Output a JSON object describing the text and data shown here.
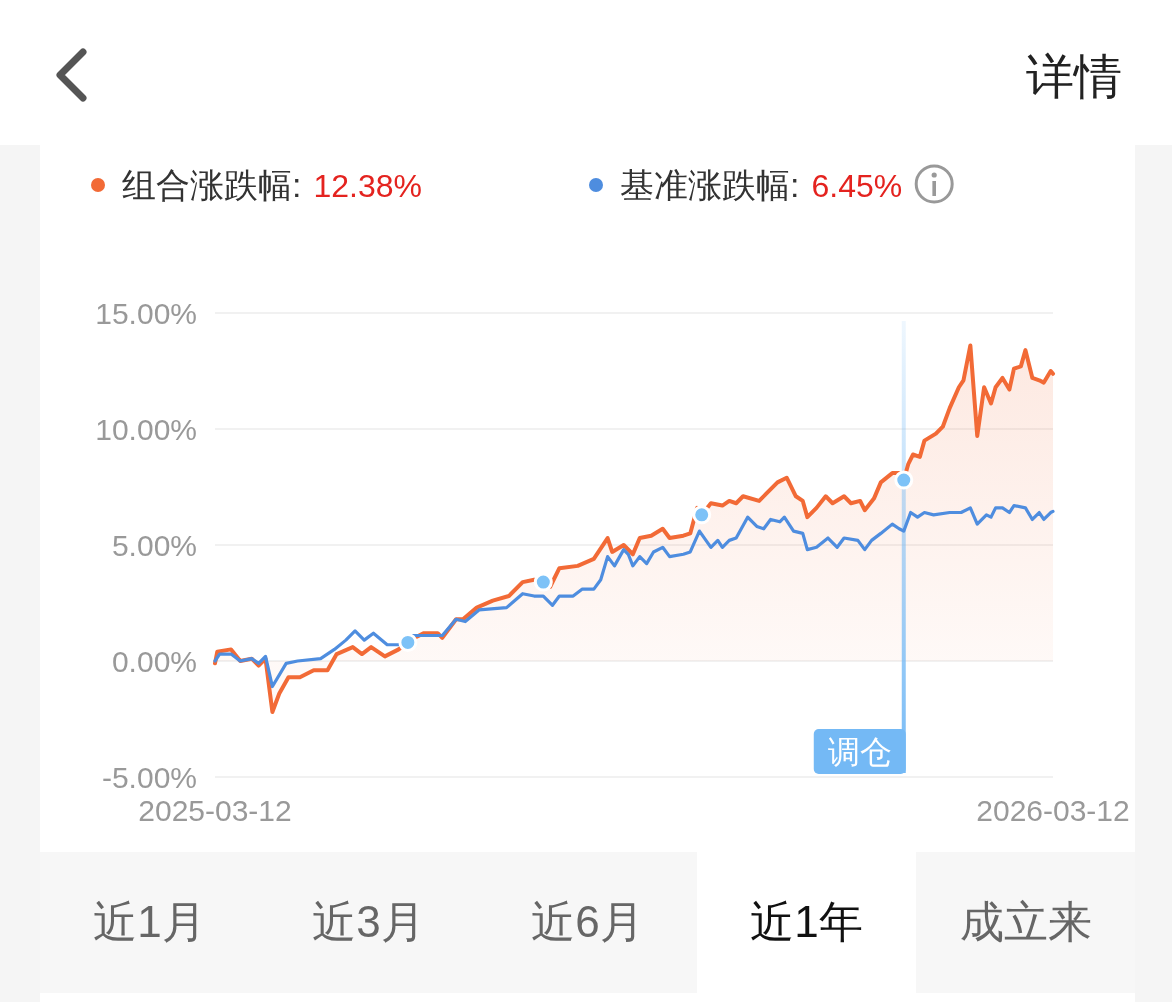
{
  "chart_data": {
    "type": "line",
    "xlim": [
      "2025-03-12",
      "2026-03-12"
    ],
    "xticks": [
      "2025-03-12",
      "2026-03-12"
    ],
    "ylim": [
      -5,
      15
    ],
    "yticks": [
      {
        "value": -5,
        "label": "-5.00%"
      },
      {
        "value": 0,
        "label": "0.00%"
      },
      {
        "value": 5,
        "label": "5.00%"
      },
      {
        "value": 10,
        "label": "10.00%"
      },
      {
        "value": 15,
        "label": "15.00%"
      }
    ],
    "grid": "y",
    "legend": "top",
    "ref_lines": [
      {
        "axis": "x",
        "value": "2026-01-06",
        "label": "调仓",
        "color": "#74b9f5"
      }
    ],
    "annotations": [
      "12.38%",
      "6.45%",
      "详情",
      "近1月",
      "近3月",
      "近6月",
      "近1年",
      "成立来"
    ],
    "series": [
      {
        "name": "组合涨跌幅:",
        "type": "area",
        "color": "#f26a36",
        "x": [
          "2025-03-12",
          "2025-03-13",
          "2025-03-19",
          "2025-03-23",
          "2025-03-28",
          "2025-03-31",
          "2025-04-03",
          "2025-04-06",
          "2025-04-09",
          "2025-04-13",
          "2025-04-18",
          "2025-04-24",
          "2025-04-30",
          "2025-05-04",
          "2025-05-11",
          "2025-05-15",
          "2025-05-19",
          "2025-05-25",
          "2025-05-31",
          "2025-06-04",
          "2025-06-07",
          "2025-06-11",
          "2025-06-17",
          "2025-06-19",
          "2025-06-25",
          "2025-06-28",
          "2025-07-04",
          "2025-07-11",
          "2025-07-18",
          "2025-07-24",
          "2025-07-29",
          "2025-08-02",
          "2025-08-05",
          "2025-08-09",
          "2025-08-17",
          "2025-08-24",
          "2025-08-30",
          "2025-09-01",
          "2025-09-06",
          "2025-09-10",
          "2025-09-13",
          "2025-09-18",
          "2025-09-23",
          "2025-09-26",
          "2025-10-02",
          "2025-10-05",
          "2025-10-08",
          "2025-10-10",
          "2025-10-14",
          "2025-10-19",
          "2025-10-22",
          "2025-10-25",
          "2025-10-28",
          "2025-11-04",
          "2025-11-07",
          "2025-11-12",
          "2025-11-16",
          "2025-11-20",
          "2025-11-23",
          "2025-11-25",
          "2025-11-29",
          "2025-12-03",
          "2025-12-06",
          "2025-12-11",
          "2025-12-14",
          "2025-12-18",
          "2025-12-20",
          "2025-12-24",
          "2025-12-27",
          "2026-01-01",
          "2026-01-04",
          "2026-01-06",
          "2026-01-08",
          "2026-01-10",
          "2026-01-13",
          "2026-01-15",
          "2026-01-20",
          "2026-01-23",
          "2026-01-26",
          "2026-01-30",
          "2026-02-01",
          "2026-02-04",
          "2026-02-07",
          "2026-02-10",
          "2026-02-13",
          "2026-02-15",
          "2026-02-18",
          "2026-02-21",
          "2026-02-23",
          "2026-02-26",
          "2026-02-28",
          "2026-03-03",
          "2026-03-06",
          "2026-03-08",
          "2026-03-11",
          "2026-03-12"
        ],
        "values": [
          -0.1,
          0.4,
          0.5,
          0.0,
          0.1,
          -0.2,
          0.1,
          -2.2,
          -1.4,
          -0.7,
          -0.7,
          -0.4,
          -0.4,
          0.3,
          0.6,
          0.3,
          0.6,
          0.2,
          0.5,
          0.8,
          1.0,
          1.2,
          1.2,
          1.0,
          1.8,
          1.8,
          2.3,
          2.6,
          2.8,
          3.4,
          3.5,
          3.4,
          3.2,
          4.0,
          4.1,
          4.4,
          5.3,
          4.7,
          5.0,
          4.6,
          5.3,
          5.4,
          5.7,
          5.3,
          5.4,
          5.5,
          6.6,
          6.3,
          6.8,
          6.7,
          6.9,
          6.8,
          7.1,
          6.9,
          7.2,
          7.7,
          7.9,
          7.1,
          6.9,
          6.2,
          6.6,
          7.1,
          6.8,
          7.1,
          6.8,
          6.9,
          6.5,
          7.0,
          7.7,
          8.1,
          8.1,
          7.8,
          8.5,
          8.9,
          8.8,
          9.5,
          9.8,
          10.1,
          10.9,
          11.8,
          12.1,
          13.6,
          9.7,
          11.8,
          11.1,
          11.8,
          12.2,
          11.7,
          12.6,
          12.7,
          13.4,
          12.2,
          12.1,
          12.0,
          12.5,
          12.38
        ]
      },
      {
        "name": "基准涨跌幅:",
        "type": "line",
        "color": "#4e8ddf",
        "x": [
          "2025-03-12",
          "2025-03-14",
          "2025-03-19",
          "2025-03-23",
          "2025-03-28",
          "2025-03-31",
          "2025-04-03",
          "2025-04-06",
          "2025-04-12",
          "2025-04-17",
          "2025-04-27",
          "2025-05-03",
          "2025-05-08",
          "2025-05-12",
          "2025-05-16",
          "2025-05-20",
          "2025-05-26",
          "2025-05-31",
          "2025-06-06",
          "2025-06-19",
          "2025-06-25",
          "2025-06-29",
          "2025-07-05",
          "2025-07-17",
          "2025-07-24",
          "2025-07-29",
          "2025-08-02",
          "2025-08-06",
          "2025-08-09",
          "2025-08-15",
          "2025-08-19",
          "2025-08-24",
          "2025-08-27",
          "2025-08-30",
          "2025-09-02",
          "2025-09-06",
          "2025-09-08",
          "2025-09-10",
          "2025-09-13",
          "2025-09-16",
          "2025-09-19",
          "2025-09-23",
          "2025-09-26",
          "2025-10-02",
          "2025-10-05",
          "2025-10-09",
          "2025-10-14",
          "2025-10-17",
          "2025-10-19",
          "2025-10-22",
          "2025-10-25",
          "2025-10-30",
          "2025-11-03",
          "2025-11-06",
          "2025-11-09",
          "2025-11-13",
          "2025-11-15",
          "2025-11-19",
          "2025-11-23",
          "2025-11-25",
          "2025-11-29",
          "2025-12-04",
          "2025-12-08",
          "2025-12-11",
          "2025-12-17",
          "2025-12-20",
          "2025-12-23",
          "2025-12-27",
          "2026-01-01",
          "2026-01-04",
          "2026-01-06",
          "2026-01-09",
          "2026-01-12",
          "2026-01-15",
          "2026-01-19",
          "2026-01-26",
          "2026-01-31",
          "2026-02-04",
          "2026-02-07",
          "2026-02-11",
          "2026-02-13",
          "2026-02-15",
          "2026-02-18",
          "2026-02-21",
          "2026-02-23",
          "2026-02-28",
          "2026-03-03",
          "2026-03-06",
          "2026-03-08",
          "2026-03-11",
          "2026-03-12"
        ],
        "values": [
          0.0,
          0.3,
          0.3,
          0.0,
          0.1,
          -0.1,
          0.2,
          -1.1,
          -0.1,
          0.0,
          0.1,
          0.5,
          0.9,
          1.3,
          0.9,
          1.2,
          0.7,
          0.7,
          1.1,
          1.1,
          1.8,
          1.7,
          2.2,
          2.3,
          2.9,
          2.8,
          2.8,
          2.4,
          2.8,
          2.8,
          3.1,
          3.1,
          3.5,
          4.5,
          4.1,
          4.8,
          4.6,
          4.1,
          4.5,
          4.2,
          4.7,
          4.9,
          4.5,
          4.6,
          4.7,
          5.6,
          4.9,
          5.2,
          4.9,
          5.2,
          5.3,
          6.2,
          5.8,
          5.7,
          6.1,
          6.0,
          6.2,
          5.6,
          5.5,
          4.8,
          4.9,
          5.3,
          4.9,
          5.3,
          5.2,
          4.8,
          5.2,
          5.5,
          5.9,
          5.7,
          5.6,
          6.4,
          6.2,
          6.4,
          6.3,
          6.4,
          6.4,
          6.6,
          5.9,
          6.3,
          6.2,
          6.6,
          6.6,
          6.4,
          6.7,
          6.6,
          6.1,
          6.4,
          6.1,
          6.4,
          6.45
        ]
      },
      {
        "type": "scatter",
        "color": "#7dc2f7",
        "x": [
          "2025-06-04",
          "2025-08-02",
          "2025-10-10",
          "2026-01-06"
        ],
        "values": [
          0.8,
          3.4,
          6.3,
          7.8
        ]
      }
    ]
  }
}
